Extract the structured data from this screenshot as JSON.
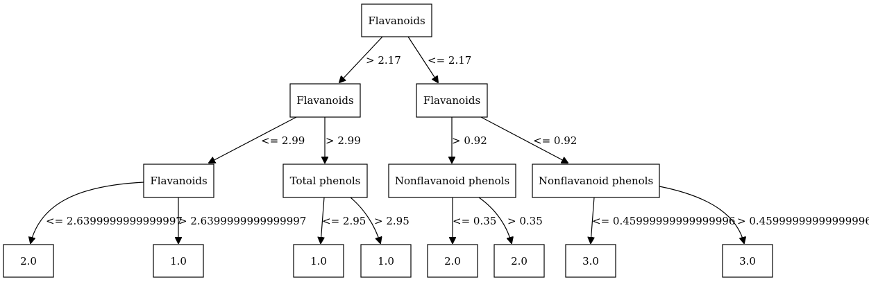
{
  "tree": {
    "nodes": [
      {
        "id": "n0",
        "label": "Flavanoids"
      },
      {
        "id": "n1",
        "label": "Flavanoids"
      },
      {
        "id": "n2",
        "label": "Flavanoids"
      },
      {
        "id": "n3",
        "label": "Flavanoids"
      },
      {
        "id": "n4",
        "label": "Total phenols"
      },
      {
        "id": "n5",
        "label": "Nonflavanoid phenols"
      },
      {
        "id": "n6",
        "label": "Nonflavanoid phenols"
      },
      {
        "id": "n7",
        "label": "2.0"
      },
      {
        "id": "n8",
        "label": "1.0"
      },
      {
        "id": "n9",
        "label": "1.0"
      },
      {
        "id": "n10",
        "label": "1.0"
      },
      {
        "id": "n11",
        "label": "2.0"
      },
      {
        "id": "n12",
        "label": "2.0"
      },
      {
        "id": "n13",
        "label": "3.0"
      },
      {
        "id": "n14",
        "label": "3.0"
      }
    ],
    "edges": [
      {
        "id": "e0",
        "from": "n0",
        "to": "n1",
        "label": "> 2.17"
      },
      {
        "id": "e1",
        "from": "n0",
        "to": "n2",
        "label": "<= 2.17"
      },
      {
        "id": "e2",
        "from": "n1",
        "to": "n3",
        "label": "<= 2.99"
      },
      {
        "id": "e3",
        "from": "n1",
        "to": "n4",
        "label": "> 2.99"
      },
      {
        "id": "e4",
        "from": "n2",
        "to": "n5",
        "label": "> 0.92"
      },
      {
        "id": "e5",
        "from": "n2",
        "to": "n6",
        "label": "<= 0.92"
      },
      {
        "id": "e6",
        "from": "n3",
        "to": "n7",
        "label": "<= 2.6399999999999997"
      },
      {
        "id": "e7",
        "from": "n3",
        "to": "n8",
        "label": "> 2.6399999999999997"
      },
      {
        "id": "e8",
        "from": "n4",
        "to": "n9",
        "label": "<= 2.95"
      },
      {
        "id": "e9",
        "from": "n4",
        "to": "n10",
        "label": "> 2.95"
      },
      {
        "id": "e10",
        "from": "n5",
        "to": "n11",
        "label": "<= 0.35"
      },
      {
        "id": "e11",
        "from": "n5",
        "to": "n12",
        "label": "> 0.35"
      },
      {
        "id": "e12",
        "from": "n6",
        "to": "n13",
        "label": "<= 0.45999999999999996"
      },
      {
        "id": "e13",
        "from": "n6",
        "to": "n14",
        "label": "> 0.45999999999999996"
      }
    ]
  }
}
